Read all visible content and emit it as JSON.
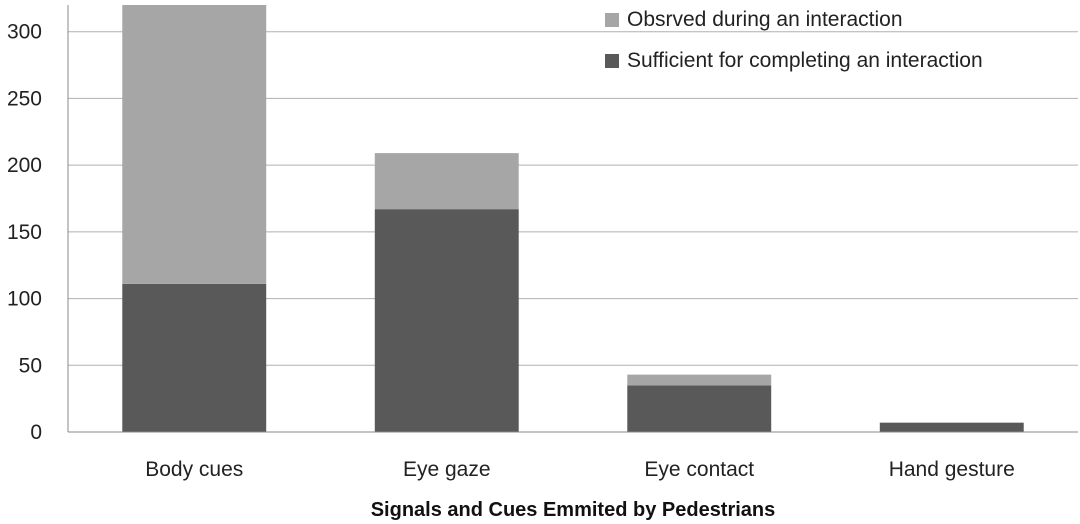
{
  "chart_data": {
    "type": "bar",
    "stacked": true,
    "categories": [
      "Body cues",
      "Eye gaze",
      "Eye contact",
      "Hand gesture"
    ],
    "series": [
      {
        "name": "Sufficient for completing an interaction",
        "values": [
          111,
          167,
          35,
          7
        ],
        "color": "#595959"
      },
      {
        "name": "Obsrved during an interaction",
        "values": [
          209,
          42,
          8,
          0
        ],
        "color": "#a6a6a6"
      }
    ],
    "xlabel": "Signals and Cues Emmited by Pedestrians",
    "ylabel": "",
    "ylim": [
      0,
      320
    ],
    "yticks": [
      0,
      50,
      100,
      150,
      200,
      250,
      300
    ],
    "grid": true,
    "legend": {
      "position": "top-right",
      "order": [
        "Obsrved during an interaction",
        "Sufficient for completing an interaction"
      ]
    }
  }
}
